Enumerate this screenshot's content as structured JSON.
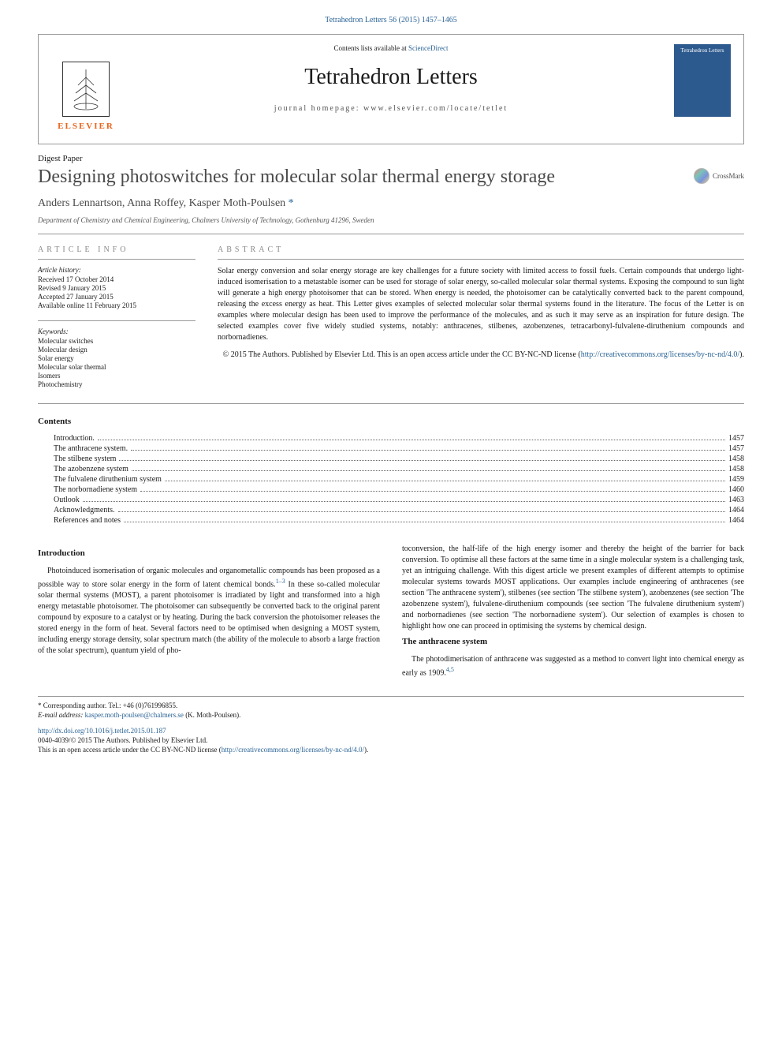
{
  "citation": "Tetrahedron Letters 56 (2015) 1457–1465",
  "header": {
    "contents_available": "Contents lists available at ",
    "sciencedirect": "ScienceDirect",
    "journal_name": "Tetrahedron Letters",
    "homepage": "journal homepage: www.elsevier.com/locate/tetlet",
    "elsevier": "ELSEVIER",
    "cover_text": "Tetrahedron Letters"
  },
  "paper_type": "Digest Paper",
  "title": "Designing photoswitches for molecular solar thermal energy storage",
  "crossmark": "CrossMark",
  "authors": "Anders Lennartson, Anna Roffey, Kasper Moth-Poulsen",
  "author_star": " *",
  "affiliation": "Department of Chemistry and Chemical Engineering, Chalmers University of Technology, Gothenburg 41296, Sweden",
  "article_info": {
    "header": "ARTICLE INFO",
    "history_label": "Article history:",
    "history": [
      "Received 17 October 2014",
      "Revised 9 January 2015",
      "Accepted 27 January 2015",
      "Available online 11 February 2015"
    ],
    "keywords_label": "Keywords:",
    "keywords": [
      "Molecular switches",
      "Molecular design",
      "Solar energy",
      "Molecular solar thermal",
      "Isomers",
      "Photochemistry"
    ]
  },
  "abstract": {
    "header": "ABSTRACT",
    "text": "Solar energy conversion and solar energy storage are key challenges for a future society with limited access to fossil fuels. Certain compounds that undergo light-induced isomerisation to a metastable isomer can be used for storage of solar energy, so-called molecular solar thermal systems. Exposing the compound to sun light will generate a high energy photoisomer that can be stored. When energy is needed, the photoisomer can be catalytically converted back to the parent compound, releasing the excess energy as heat. This Letter gives examples of selected molecular solar thermal systems found in the literature. The focus of the Letter is on examples where molecular design has been used to improve the performance of the molecules, and as such it may serve as an inspiration for future design. The selected examples cover five widely studied systems, notably: anthracenes, stilbenes, azobenzenes, tetracarbonyl-fulvalene-diruthenium compounds and norbornadienes.",
    "copyright": "© 2015 The Authors. Published by Elsevier Ltd. This is an open access article under the CC BY-NC-ND license (",
    "license_url": "http://creativecommons.org/licenses/by-nc-nd/4.0/",
    "license_close": ")."
  },
  "contents": {
    "title": "Contents",
    "items": [
      {
        "label": "Introduction.",
        "page": "1457"
      },
      {
        "label": "The anthracene system.",
        "page": "1457"
      },
      {
        "label": "The stilbene system",
        "page": "1458"
      },
      {
        "label": "The azobenzene system",
        "page": "1458"
      },
      {
        "label": "The fulvalene diruthenium system",
        "page": "1459"
      },
      {
        "label": "The norbornadiene system",
        "page": "1460"
      },
      {
        "label": "Outlook",
        "page": "1463"
      },
      {
        "label": "Acknowledgments.",
        "page": "1464"
      },
      {
        "label": "References and notes",
        "page": "1464"
      }
    ]
  },
  "body": {
    "intro_heading": "Introduction",
    "intro_p1_a": "Photoinduced isomerisation of organic molecules and organometallic compounds has been proposed as a possible way to store solar energy in the form of latent chemical bonds.",
    "intro_ref1": "1–3",
    "intro_p1_b": " In these so-called molecular solar thermal systems (MOST), a parent photoisomer is irradiated by light and transformed into a high energy metastable photoisomer. The photoisomer can subsequently be converted back to the original parent compound by exposure to a catalyst or by heating. During the back conversion the photoisomer releases the stored energy in the form of heat. Several factors need to be optimised when designing a MOST system, including energy storage density, solar spectrum match (the ability of the molecule to absorb a large fraction of the solar spectrum), quantum yield of pho-",
    "col2_p1": "toconversion, the half-life of the high energy isomer and thereby the height of the barrier for back conversion. To optimise all these factors at the same time in a single molecular system is a challenging task, yet an intriguing challenge. With this digest article we present examples of different attempts to optimise molecular systems towards MOST applications. Our examples include engineering of anthracenes (see section 'The anthracene system'), stilbenes (see section 'The stilbene system'), azobenzenes (see section 'The azobenzene system'), fulvalene-diruthenium compounds (see section 'The fulvalene diruthenium system') and norbornadienes (see section 'The norbornadiene system'). Our selection of examples is chosen to highlight how one can proceed in optimising the systems by chemical design.",
    "anthracene_heading": "The anthracene system",
    "anthracene_p1_a": "The photodimerisation of anthracene was suggested as a method to convert light into chemical energy as early as 1909.",
    "anthracene_ref": "4,5"
  },
  "footer": {
    "corresponding": "* Corresponding author. Tel.: +46 (0)761996855.",
    "email_label": "E-mail address: ",
    "email": "kasper.moth-poulsen@chalmers.se",
    "email_name": " (K. Moth-Poulsen).",
    "doi": "http://dx.doi.org/10.1016/j.tetlet.2015.01.187",
    "issn": "0040-4039/© 2015 The Authors. Published by Elsevier Ltd.",
    "license_a": "This is an open access article under the CC BY-NC-ND license (",
    "license_url": "http://creativecommons.org/licenses/by-nc-nd/4.0/",
    "license_b": ")."
  },
  "colors": {
    "link": "#2a6496",
    "elsevier_orange": "#e8641b",
    "text": "#1a1a1a",
    "border": "#999999"
  }
}
